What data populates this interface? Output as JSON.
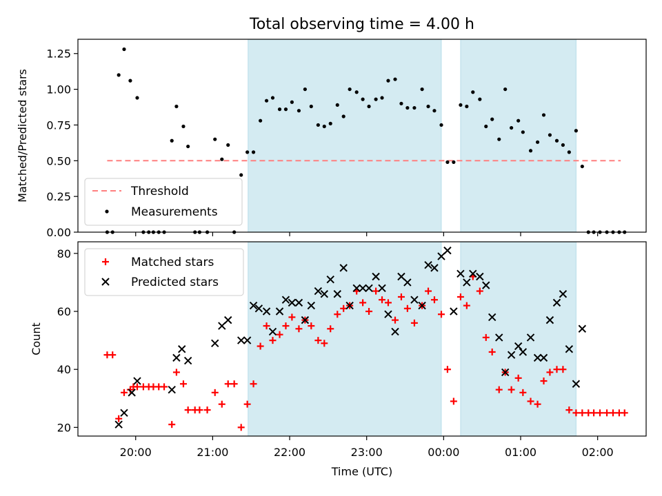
{
  "chart_data": [
    {
      "type": "scatter",
      "title": "Total observing time = 4.00 h",
      "xlabel": "",
      "ylabel": "Matched/Predicted stars",
      "ylim": [
        0,
        1.35
      ],
      "yticks": [
        "0.00",
        "0.25",
        "0.50",
        "0.75",
        "1.00",
        "1.25"
      ],
      "legend_placement": "lower-left",
      "threshold": {
        "name": "Threshold",
        "value": 0.5,
        "x_range": [
          19.63,
          26.3
        ],
        "color": "#ff7f7f"
      },
      "observing_windows": [
        [
          21.46,
          23.97
        ],
        [
          24.22,
          25.72
        ]
      ],
      "window_color": "#add8e6",
      "series": [
        {
          "name": "Measurements",
          "color": "#000000",
          "points": [
            [
              19.63,
              0.0
            ],
            [
              19.7,
              0.0
            ],
            [
              19.78,
              1.1
            ],
            [
              19.85,
              1.28
            ],
            [
              19.93,
              1.06
            ],
            [
              20.02,
              0.94
            ],
            [
              20.1,
              0.0
            ],
            [
              20.17,
              0.0
            ],
            [
              20.23,
              0.0
            ],
            [
              20.3,
              0.0
            ],
            [
              20.37,
              0.0
            ],
            [
              20.47,
              0.64
            ],
            [
              20.53,
              0.88
            ],
            [
              20.62,
              0.74
            ],
            [
              20.68,
              0.6
            ],
            [
              20.77,
              0.0
            ],
            [
              20.83,
              0.0
            ],
            [
              20.93,
              0.0
            ],
            [
              21.03,
              0.65
            ],
            [
              21.12,
              0.51
            ],
            [
              21.2,
              0.61
            ],
            [
              21.28,
              0.0
            ],
            [
              21.37,
              0.4
            ],
            [
              21.45,
              0.56
            ],
            [
              21.53,
              0.56
            ],
            [
              21.62,
              0.78
            ],
            [
              21.7,
              0.92
            ],
            [
              21.78,
              0.94
            ],
            [
              21.87,
              0.86
            ],
            [
              21.95,
              0.86
            ],
            [
              22.03,
              0.91
            ],
            [
              22.12,
              0.85
            ],
            [
              22.2,
              1.0
            ],
            [
              22.28,
              0.88
            ],
            [
              22.37,
              0.75
            ],
            [
              22.45,
              0.74
            ],
            [
              22.53,
              0.76
            ],
            [
              22.62,
              0.89
            ],
            [
              22.7,
              0.81
            ],
            [
              22.78,
              1.0
            ],
            [
              22.87,
              0.98
            ],
            [
              22.95,
              0.93
            ],
            [
              23.03,
              0.88
            ],
            [
              23.12,
              0.93
            ],
            [
              23.2,
              0.94
            ],
            [
              23.28,
              1.06
            ],
            [
              23.37,
              1.07
            ],
            [
              23.45,
              0.9
            ],
            [
              23.53,
              0.87
            ],
            [
              23.62,
              0.87
            ],
            [
              23.72,
              1.0
            ],
            [
              23.8,
              0.88
            ],
            [
              23.88,
              0.85
            ],
            [
              23.97,
              0.75
            ],
            [
              24.05,
              0.49
            ],
            [
              24.13,
              0.49
            ],
            [
              24.22,
              0.89
            ],
            [
              24.3,
              0.88
            ],
            [
              24.38,
              0.98
            ],
            [
              24.47,
              0.93
            ],
            [
              24.55,
              0.74
            ],
            [
              24.63,
              0.79
            ],
            [
              24.72,
              0.65
            ],
            [
              24.8,
              1.0
            ],
            [
              24.88,
              0.73
            ],
            [
              24.97,
              0.78
            ],
            [
              25.03,
              0.7
            ],
            [
              25.13,
              0.57
            ],
            [
              25.22,
              0.63
            ],
            [
              25.3,
              0.82
            ],
            [
              25.38,
              0.68
            ],
            [
              25.47,
              0.64
            ],
            [
              25.55,
              0.61
            ],
            [
              25.63,
              0.56
            ],
            [
              25.72,
              0.71
            ],
            [
              25.8,
              0.46
            ],
            [
              25.88,
              0.0
            ],
            [
              25.95,
              0.0
            ],
            [
              26.03,
              0.0
            ],
            [
              26.12,
              0.0
            ],
            [
              26.2,
              0.0
            ],
            [
              26.28,
              0.0
            ],
            [
              26.35,
              0.0
            ]
          ]
        }
      ]
    },
    {
      "type": "scatter",
      "title": "",
      "xlabel": "Time (UTC)",
      "ylabel": "Count",
      "ylim": [
        17,
        84
      ],
      "yticks": [
        "20",
        "40",
        "60",
        "80"
      ],
      "xlim": [
        19.25,
        26.63
      ],
      "xticks": [
        {
          "value": 20,
          "label": "20:00"
        },
        {
          "value": 21,
          "label": "21:00"
        },
        {
          "value": 22,
          "label": "22:00"
        },
        {
          "value": 23,
          "label": "23:00"
        },
        {
          "value": 24,
          "label": "00:00"
        },
        {
          "value": 25,
          "label": "01:00"
        },
        {
          "value": 26,
          "label": "02:00"
        }
      ],
      "legend_placement": "top-left",
      "observing_windows": [
        [
          21.46,
          23.97
        ],
        [
          24.22,
          25.72
        ]
      ],
      "window_color": "#add8e6",
      "series": [
        {
          "name": "Matched stars",
          "marker": "+",
          "color": "#ff0000",
          "points": [
            [
              19.63,
              45
            ],
            [
              19.7,
              45
            ],
            [
              19.78,
              23
            ],
            [
              19.85,
              32
            ],
            [
              19.93,
              33
            ],
            [
              19.97,
              34
            ],
            [
              20.02,
              34
            ],
            [
              20.1,
              34
            ],
            [
              20.17,
              34
            ],
            [
              20.23,
              34
            ],
            [
              20.3,
              34
            ],
            [
              20.37,
              34
            ],
            [
              20.47,
              21
            ],
            [
              20.53,
              39
            ],
            [
              20.62,
              35
            ],
            [
              20.68,
              26
            ],
            [
              20.77,
              26
            ],
            [
              20.83,
              26
            ],
            [
              20.93,
              26
            ],
            [
              21.03,
              32
            ],
            [
              21.12,
              28
            ],
            [
              21.2,
              35
            ],
            [
              21.28,
              35
            ],
            [
              21.37,
              20
            ],
            [
              21.45,
              28
            ],
            [
              21.53,
              35
            ],
            [
              21.62,
              48
            ],
            [
              21.7,
              55
            ],
            [
              21.78,
              50
            ],
            [
              21.87,
              52
            ],
            [
              21.95,
              55
            ],
            [
              22.03,
              58
            ],
            [
              22.12,
              54
            ],
            [
              22.2,
              57
            ],
            [
              22.28,
              55
            ],
            [
              22.37,
              50
            ],
            [
              22.45,
              49
            ],
            [
              22.53,
              54
            ],
            [
              22.62,
              59
            ],
            [
              22.7,
              61
            ],
            [
              22.78,
              62
            ],
            [
              22.87,
              67
            ],
            [
              22.95,
              63
            ],
            [
              23.03,
              60
            ],
            [
              23.12,
              67
            ],
            [
              23.2,
              64
            ],
            [
              23.28,
              63
            ],
            [
              23.37,
              57
            ],
            [
              23.45,
              65
            ],
            [
              23.53,
              61
            ],
            [
              23.62,
              56
            ],
            [
              23.72,
              62
            ],
            [
              23.8,
              67
            ],
            [
              23.88,
              64
            ],
            [
              23.97,
              59
            ],
            [
              24.05,
              40
            ],
            [
              24.13,
              29
            ],
            [
              24.22,
              65
            ],
            [
              24.3,
              62
            ],
            [
              24.38,
              72
            ],
            [
              24.47,
              67
            ],
            [
              24.55,
              51
            ],
            [
              24.63,
              46
            ],
            [
              24.72,
              33
            ],
            [
              24.8,
              39
            ],
            [
              24.88,
              33
            ],
            [
              24.97,
              37
            ],
            [
              25.03,
              32
            ],
            [
              25.13,
              29
            ],
            [
              25.22,
              28
            ],
            [
              25.3,
              36
            ],
            [
              25.38,
              39
            ],
            [
              25.47,
              40
            ],
            [
              25.55,
              40
            ],
            [
              25.63,
              26
            ],
            [
              25.72,
              25
            ],
            [
              25.8,
              25
            ],
            [
              25.88,
              25
            ],
            [
              25.95,
              25
            ],
            [
              26.03,
              25
            ],
            [
              26.12,
              25
            ],
            [
              26.2,
              25
            ],
            [
              26.28,
              25
            ],
            [
              26.35,
              25
            ]
          ]
        },
        {
          "name": "Predicted stars",
          "marker": "x",
          "color": "#000000",
          "points": [
            [
              19.78,
              21
            ],
            [
              19.85,
              25
            ],
            [
              19.95,
              32
            ],
            [
              20.02,
              36
            ],
            [
              20.47,
              33
            ],
            [
              20.53,
              44
            ],
            [
              20.6,
              47
            ],
            [
              20.68,
              43
            ],
            [
              21.03,
              49
            ],
            [
              21.12,
              55
            ],
            [
              21.2,
              57
            ],
            [
              21.37,
              50
            ],
            [
              21.45,
              50
            ],
            [
              21.53,
              62
            ],
            [
              21.6,
              61
            ],
            [
              21.7,
              60
            ],
            [
              21.78,
              53
            ],
            [
              21.87,
              60
            ],
            [
              21.95,
              64
            ],
            [
              22.03,
              63
            ],
            [
              22.12,
              63
            ],
            [
              22.2,
              57
            ],
            [
              22.28,
              62
            ],
            [
              22.37,
              67
            ],
            [
              22.45,
              66
            ],
            [
              22.53,
              71
            ],
            [
              22.62,
              66
            ],
            [
              22.7,
              75
            ],
            [
              22.78,
              62
            ],
            [
              22.87,
              68
            ],
            [
              22.95,
              68
            ],
            [
              23.03,
              68
            ],
            [
              23.12,
              72
            ],
            [
              23.2,
              68
            ],
            [
              23.28,
              59
            ],
            [
              23.37,
              53
            ],
            [
              23.45,
              72
            ],
            [
              23.53,
              70
            ],
            [
              23.62,
              64
            ],
            [
              23.72,
              62
            ],
            [
              23.8,
              76
            ],
            [
              23.88,
              75
            ],
            [
              23.97,
              79
            ],
            [
              24.05,
              81
            ],
            [
              24.13,
              60
            ],
            [
              24.22,
              73
            ],
            [
              24.3,
              70
            ],
            [
              24.38,
              73
            ],
            [
              24.47,
              72
            ],
            [
              24.55,
              69
            ],
            [
              24.63,
              58
            ],
            [
              24.72,
              51
            ],
            [
              24.8,
              39
            ],
            [
              24.88,
              45
            ],
            [
              24.97,
              48
            ],
            [
              25.03,
              46
            ],
            [
              25.13,
              51
            ],
            [
              25.22,
              44
            ],
            [
              25.3,
              44
            ],
            [
              25.38,
              57
            ],
            [
              25.47,
              63
            ],
            [
              25.55,
              66
            ],
            [
              25.63,
              47
            ],
            [
              25.72,
              35
            ],
            [
              25.8,
              54
            ]
          ]
        }
      ]
    }
  ]
}
